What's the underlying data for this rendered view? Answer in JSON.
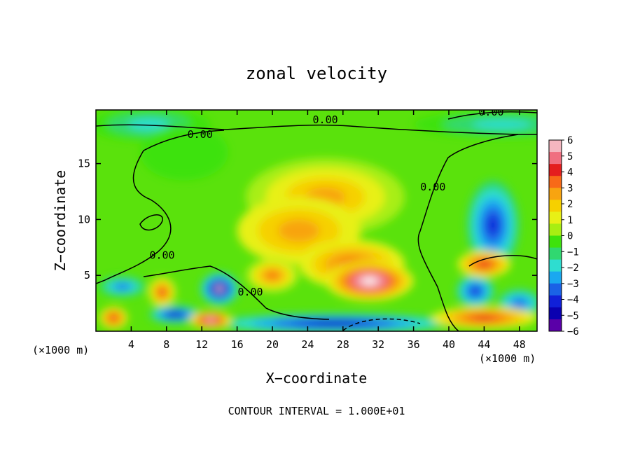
{
  "chart_data": {
    "type": "heatmap",
    "title": "zonal velocity",
    "xlabel": "X−coordinate",
    "ylabel": "Z−coordinate",
    "x_unit_left": "(×1000 m)",
    "x_unit_right": "(×1000 m)",
    "footer": "CONTOUR INTERVAL = 1.000E+01",
    "xlim": [
      0,
      50
    ],
    "ylim": [
      0,
      19.8
    ],
    "x_ticks": [
      4,
      8,
      12,
      16,
      20,
      24,
      28,
      32,
      36,
      40,
      44,
      48
    ],
    "y_ticks": [
      5,
      10,
      15
    ],
    "colorbar": {
      "ticks": [
        6,
        5,
        4,
        3,
        2,
        1,
        0,
        -1,
        -2,
        -3,
        -4,
        -5,
        -6
      ],
      "labels": [
        "6",
        "5",
        "4",
        "3",
        "2",
        "1",
        "0",
        "−1",
        "−2",
        "−3",
        "−4",
        "−5",
        "−6"
      ],
      "colors": [
        "#f4b6bf",
        "#f06f80",
        "#e41e1e",
        "#f86a18",
        "#f8a410",
        "#f6d000",
        "#e8f016",
        "#a8ee12",
        "#3ee20c",
        "#30d870",
        "#2eddd0",
        "#1aa8f0",
        "#1a62e6",
        "#1020d8",
        "#0a00b0",
        "#5a00a8"
      ]
    },
    "contour_labels": [
      {
        "text": "0.00",
        "x": 26.0,
        "z": 18.6
      },
      {
        "text": "0.00",
        "x": 44.8,
        "z": 19.3
      },
      {
        "text": "0.00",
        "x": 11.8,
        "z": 17.3
      },
      {
        "text": "0.00",
        "x": 38.2,
        "z": 12.6
      },
      {
        "text": "0.00",
        "x": 7.5,
        "z": 6.5
      },
      {
        "text": "0.00",
        "x": 17.5,
        "z": 3.2
      }
    ],
    "blobs": [
      {
        "x": 26,
        "z": 12,
        "rx": 9,
        "rz": 3.5,
        "v": 2.6
      },
      {
        "x": 23,
        "z": 9,
        "rx": 7,
        "rz": 3,
        "v": 2.4
      },
      {
        "x": 29,
        "z": 6,
        "rx": 6,
        "rz": 2.2,
        "v": 3.4
      },
      {
        "x": 31,
        "z": 4.5,
        "rx": 5,
        "rz": 1.8,
        "v": 6.5
      },
      {
        "x": 20,
        "z": 5,
        "rx": 3,
        "rz": 1.5,
        "v": 3.5
      },
      {
        "x": 7.5,
        "z": 3.5,
        "rx": 1.6,
        "rz": 1.4,
        "v": 4.5
      },
      {
        "x": 2,
        "z": 1.2,
        "rx": 1.6,
        "rz": 1,
        "v": 4
      },
      {
        "x": 14,
        "z": 3.8,
        "rx": 2.2,
        "rz": 1.5,
        "v": -6.5
      },
      {
        "x": 9,
        "z": 1.5,
        "rx": 3,
        "rz": 0.8,
        "v": -5
      },
      {
        "x": 3,
        "z": 4,
        "rx": 3,
        "rz": 1,
        "v": -3.5
      },
      {
        "x": 27,
        "z": 0.7,
        "rx": 14,
        "rz": 0.9,
        "v": -5
      },
      {
        "x": 45,
        "z": 9.5,
        "rx": 3,
        "rz": 4,
        "v": -4.2
      },
      {
        "x": 43,
        "z": 3.6,
        "rx": 2.2,
        "rz": 1.5,
        "v": -4
      },
      {
        "x": 48,
        "z": 2.5,
        "rx": 2.5,
        "rz": 1.3,
        "v": -3
      },
      {
        "x": 44,
        "z": 6,
        "rx": 3,
        "rz": 1.2,
        "v": 4
      },
      {
        "x": 44,
        "z": 1.2,
        "rx": 6,
        "rz": 1,
        "v": 4
      },
      {
        "x": 46,
        "z": 18.5,
        "rx": 10,
        "rz": 1.2,
        "v": -2
      },
      {
        "x": 6,
        "z": 18.5,
        "rx": 7,
        "rz": 1.5,
        "v": -1.6
      },
      {
        "x": 10,
        "z": 16,
        "rx": 5,
        "rz": 2.5,
        "v": -0.6
      },
      {
        "x": 13,
        "z": 1.0,
        "rx": 2.4,
        "rz": 0.8,
        "v": 6
      }
    ]
  }
}
